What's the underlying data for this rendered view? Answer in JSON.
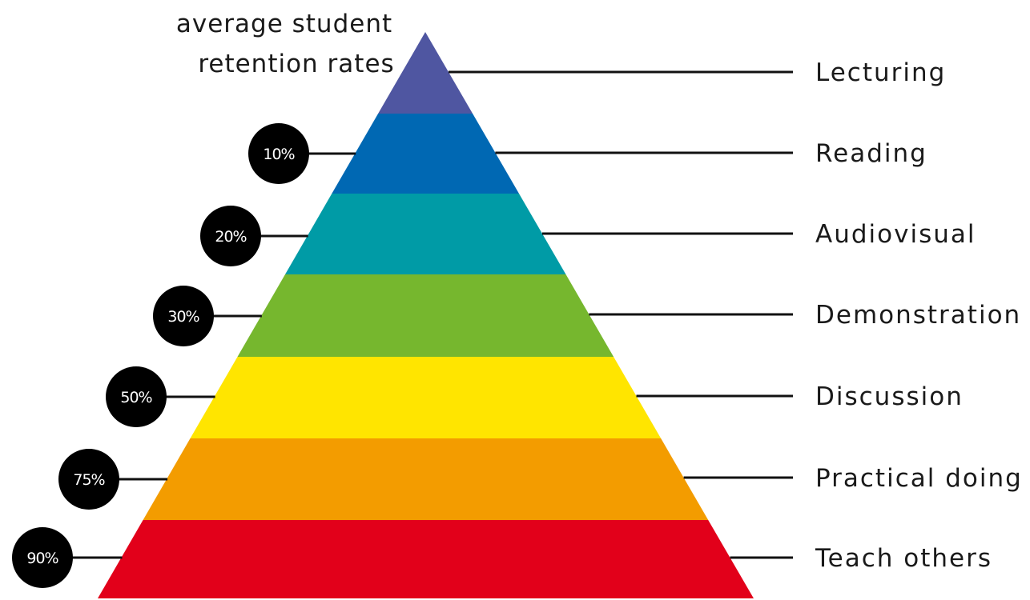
{
  "title": {
    "line1": "average student",
    "line2": "retention rates"
  },
  "layers": [
    {
      "label": "Lecturing",
      "color": "#4F56A1",
      "percent": ""
    },
    {
      "label": "Reading",
      "color": "#0068B3",
      "percent": "10%"
    },
    {
      "label": "Audiovisual",
      "color": "#009BA6",
      "percent": "20%"
    },
    {
      "label": "Demonstration",
      "color": "#76B72E",
      "percent": "30%"
    },
    {
      "label": "Discussion",
      "color": "#FFE500",
      "percent": "50%"
    },
    {
      "label": "Practical doing",
      "color": "#F39C00",
      "percent": "75%"
    },
    {
      "label": "Teach others",
      "color": "#E2001A",
      "percent": "90%"
    }
  ],
  "badge_color": "#000000"
}
